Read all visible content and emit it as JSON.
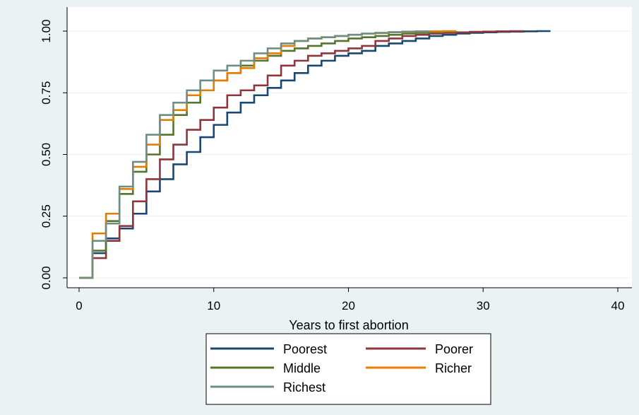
{
  "chart_data": {
    "type": "line",
    "xlabel": "Years to first abortion",
    "ylabel": "",
    "xlim": [
      0,
      40
    ],
    "ylim": [
      0,
      1
    ],
    "x_ticks": [
      0,
      10,
      20,
      30,
      40
    ],
    "x_tick_labels": [
      "0",
      "10",
      "20",
      "30",
      "40"
    ],
    "y_ticks": [
      0,
      0.25,
      0.5,
      0.75,
      1
    ],
    "y_tick_labels": [
      "0.00",
      "0.25",
      "0.50",
      "0.75",
      "1.00"
    ],
    "grid": true,
    "legend_position": "bottom",
    "series": [
      {
        "name": "Poorest",
        "color": "#1a476f",
        "x": [
          0,
          1,
          2,
          3,
          4,
          5,
          6,
          7,
          8,
          9,
          10,
          11,
          12,
          13,
          14,
          15,
          16,
          17,
          18,
          19,
          20,
          21,
          22,
          23,
          24,
          25,
          26,
          27,
          28,
          29,
          30,
          31,
          32,
          33,
          34,
          35
        ],
        "y": [
          0,
          0.1,
          0.16,
          0.2,
          0.26,
          0.35,
          0.4,
          0.46,
          0.51,
          0.57,
          0.62,
          0.67,
          0.71,
          0.74,
          0.77,
          0.8,
          0.83,
          0.86,
          0.88,
          0.9,
          0.91,
          0.92,
          0.94,
          0.95,
          0.96,
          0.97,
          0.98,
          0.985,
          0.99,
          0.993,
          0.995,
          0.997,
          0.998,
          0.999,
          1.0,
          1.0
        ]
      },
      {
        "name": "Poorer",
        "color": "#90353b",
        "x": [
          0,
          1,
          2,
          3,
          4,
          5,
          6,
          7,
          8,
          9,
          10,
          11,
          12,
          13,
          14,
          15,
          16,
          17,
          18,
          19,
          20,
          21,
          22,
          23,
          24,
          25,
          26,
          27,
          28,
          29,
          30,
          31,
          32,
          33
        ],
        "y": [
          0,
          0.08,
          0.15,
          0.21,
          0.31,
          0.4,
          0.48,
          0.54,
          0.6,
          0.64,
          0.69,
          0.74,
          0.76,
          0.78,
          0.82,
          0.86,
          0.88,
          0.9,
          0.91,
          0.92,
          0.93,
          0.94,
          0.96,
          0.97,
          0.98,
          0.985,
          0.99,
          0.993,
          0.995,
          0.997,
          0.998,
          0.999,
          1.0,
          1.0
        ]
      },
      {
        "name": "Middle",
        "color": "#55752f",
        "x": [
          0,
          1,
          2,
          3,
          4,
          5,
          6,
          7,
          8,
          9,
          10,
          11,
          12,
          13,
          14,
          15,
          16,
          17,
          18,
          19,
          20,
          21,
          22,
          23,
          24,
          25,
          26,
          27,
          28
        ],
        "y": [
          0,
          0.11,
          0.23,
          0.34,
          0.43,
          0.5,
          0.58,
          0.66,
          0.71,
          0.76,
          0.8,
          0.83,
          0.86,
          0.88,
          0.9,
          0.92,
          0.93,
          0.94,
          0.95,
          0.96,
          0.97,
          0.975,
          0.98,
          0.985,
          0.99,
          0.993,
          0.996,
          0.998,
          1.0
        ]
      },
      {
        "name": "Richer",
        "color": "#e37e00",
        "x": [
          0,
          1,
          2,
          3,
          4,
          5,
          6,
          7,
          8,
          9,
          10,
          11,
          12,
          13,
          14,
          15,
          16,
          17,
          18,
          19,
          20,
          21,
          22,
          23,
          24,
          25,
          26,
          27,
          28
        ],
        "y": [
          0,
          0.18,
          0.26,
          0.36,
          0.45,
          0.54,
          0.64,
          0.68,
          0.74,
          0.76,
          0.8,
          0.83,
          0.85,
          0.89,
          0.91,
          0.94,
          0.96,
          0.97,
          0.975,
          0.98,
          0.985,
          0.99,
          0.992,
          0.995,
          0.997,
          0.998,
          0.999,
          1.0,
          1.0
        ]
      },
      {
        "name": "Richest",
        "color": "#6e8e84",
        "x": [
          0,
          1,
          2,
          3,
          4,
          5,
          6,
          7,
          8,
          9,
          10,
          11,
          12,
          13,
          14,
          15,
          16,
          17,
          18,
          19,
          20,
          21,
          22,
          23,
          24,
          25,
          26
        ],
        "y": [
          0,
          0.15,
          0.22,
          0.37,
          0.47,
          0.58,
          0.66,
          0.71,
          0.76,
          0.8,
          0.84,
          0.86,
          0.88,
          0.91,
          0.93,
          0.95,
          0.96,
          0.97,
          0.975,
          0.98,
          0.985,
          0.99,
          0.993,
          0.996,
          0.998,
          0.999,
          1.0
        ]
      }
    ]
  }
}
